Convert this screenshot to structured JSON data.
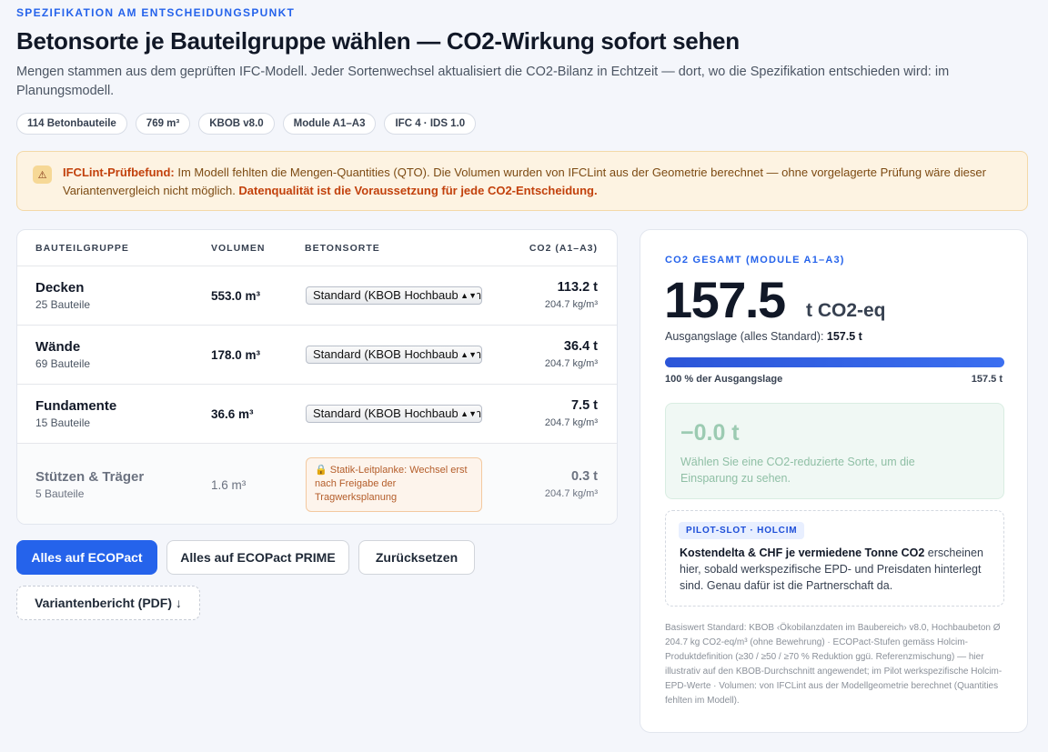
{
  "header": {
    "eyebrow": "SPEZIFIKATION AM ENTSCHEIDUNGSPUNKT",
    "title": "Betonsorte je Bauteilgruppe wählen — CO2-Wirkung sofort sehen",
    "subtitle": "Mengen stammen aus dem geprüften IFC-Modell. Jeder Sortenwechsel aktualisiert die CO2-Bilanz in Echtzeit — dort, wo die Spezifikation entschieden wird: im Planungsmodell."
  },
  "chips": [
    "114 Betonbauteile",
    "769 m³",
    "KBOB v8.0",
    "Module A1–A3",
    "IFC 4 · IDS 1.0"
  ],
  "alert": {
    "icon": "warning-icon",
    "lead": "IFCLint-Prüfbefund:",
    "text": " Im Modell fehlten die Mengen-Quantities (QTO). Die Volumen wurden von IFCLint aus der Geometrie berechnet — ohne vorgelagerte Prüfung wäre dieser Variantenvergleich nicht möglich. ",
    "emphasis": "Datenqualität ist die Voraussetzung für jede CO2-Entscheidung."
  },
  "table": {
    "headers": {
      "group": "BAUTEILGRUPPE",
      "volume": "VOLUMEN",
      "concrete": "BETONSORTE",
      "co2": "CO2 (A1–A3)"
    },
    "rows": [
      {
        "name": "Decken",
        "count": "25 Bauteile",
        "volume": "553.0 m³",
        "concrete": "Standard (KBOB Hochbaubeton)",
        "co2": "113.2 t",
        "intensity": "204.7 kg/m³"
      },
      {
        "name": "Wände",
        "count": "69 Bauteile",
        "volume": "178.0 m³",
        "concrete": "Standard (KBOB Hochbaubeton)",
        "co2": "36.4 t",
        "intensity": "204.7 kg/m³"
      },
      {
        "name": "Fundamente",
        "count": "15 Bauteile",
        "volume": "36.6 m³",
        "concrete": "Standard (KBOB Hochbaubeton)",
        "co2": "7.5 t",
        "intensity": "204.7 kg/m³"
      },
      {
        "name": "Stützen & Träger",
        "count": "5 Bauteile",
        "volume": "1.6 m³",
        "lock_note": "🔒 Statik-Leitplanke: Wechsel erst nach Freigabe der Tragwerksplanung",
        "co2": "0.3 t",
        "intensity": "204.7 kg/m³"
      }
    ]
  },
  "actions": {
    "all_ecopact": "Alles auf ECOPact",
    "all_ecopact_prime": "Alles auf ECOPact PRIME",
    "reset": "Zurücksetzen",
    "report": "Variantenbericht (PDF) ↓"
  },
  "summary": {
    "label": "CO2 GESAMT (MODULE A1–A3)",
    "total": "157.5",
    "unit": "t CO2-eq",
    "baseline_label": "Ausgangslage (alles Standard):",
    "baseline_value": "157.5 t",
    "progress_fraction": 1.0,
    "progress_left": "100 % der Ausgangslage",
    "progress_right": "157.5 t",
    "saving_value": "−0.0 t",
    "saving_text": "Wählen Sie eine CO2-reduzierte Sorte, um die Einsparung zu sehen.",
    "pilot_tag": "PILOT-SLOT · HOLCIM",
    "pilot_bold": "Kostendelta & CHF je vermiedene Tonne CO2",
    "pilot_text": " erscheinen hier, sobald werkspezifische EPD- und Preisdaten hinterlegt sind. Genau dafür ist die Partnerschaft da.",
    "footnote": "Basiswert Standard: KBOB ‹Ökobilanzdaten im Baubereich› v8.0, Hochbaubeton Ø 204.7 kg CO2-eq/m³ (ohne Bewehrung) · ECOPact-Stufen gemäss Holcim-Produktdefinition (≥30 / ≥50 / ≥70 % Reduktion ggü. Referenzmischung) — hier illustrativ auf den KBOB-Durchschnitt angewendet; im Pilot werkspezifische Holcim-EPD-Werte · Volumen: von IFCLint aus der Modellgeometrie berechnet (Quantities fehlten im Modell)."
  },
  "colors": {
    "accent": "#2563eb",
    "warning_bg": "#fdf3e2",
    "saving_bg": "#f0f8f4"
  }
}
